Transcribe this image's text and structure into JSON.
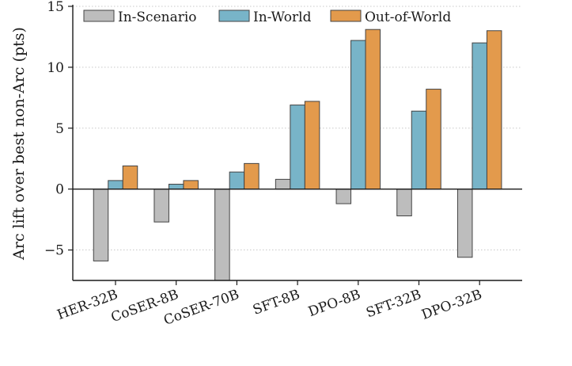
{
  "chart_data": {
    "type": "bar",
    "title": "",
    "xlabel": "",
    "ylabel": "Arc lift over best non-Arc (pts)",
    "categories": [
      "HER-32B",
      "CoSER-8B",
      "CoSER-70B",
      "SFT-8B",
      "DPO-8B",
      "SFT-32B",
      "DPO-32B"
    ],
    "series": [
      {
        "name": "In-Scenario",
        "color": "#bdbdbd",
        "values": [
          -5.9,
          -2.7,
          -7.5,
          0.8,
          -1.2,
          -2.2,
          -5.6
        ]
      },
      {
        "name": "In-World",
        "color": "#78b4c8",
        "values": [
          0.7,
          0.4,
          1.4,
          6.9,
          12.2,
          6.4,
          12.0
        ]
      },
      {
        "name": "Out-of-World",
        "color": "#e39a4c",
        "values": [
          1.9,
          0.7,
          2.1,
          7.2,
          13.1,
          8.2,
          13.0
        ]
      }
    ],
    "ylim": [
      -7.5,
      15
    ],
    "yticks": [
      -5,
      0,
      5,
      10,
      15
    ],
    "ytick_labels": [
      "−5",
      "0",
      "5",
      "10",
      "15"
    ],
    "grid": "horizontal dotted",
    "legend_position": "top, horizontal"
  }
}
